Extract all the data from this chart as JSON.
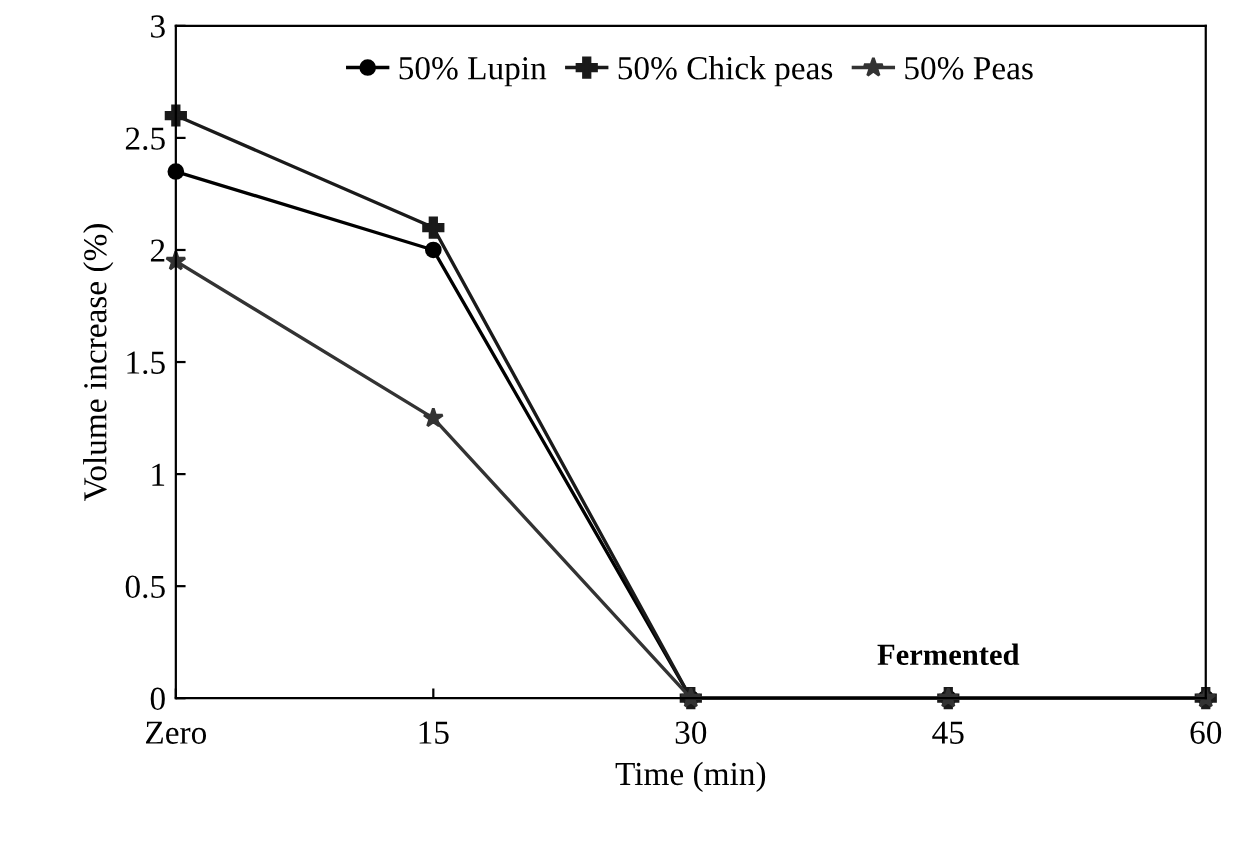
{
  "chart_data": {
    "type": "line",
    "xlabel": "Time (min)",
    "ylabel": "Volume increase (%)",
    "categories": [
      "Zero",
      "15",
      "30",
      "45",
      "60"
    ],
    "series": [
      {
        "name": "50% Lupin",
        "color": "#000000",
        "marker": "circle",
        "values": [
          2.35,
          2.0,
          0,
          0,
          0
        ]
      },
      {
        "name": "50% Chick peas",
        "color": "#1a1a1a",
        "marker": "cross",
        "values": [
          2.6,
          2.1,
          0,
          0,
          0
        ]
      },
      {
        "name": "50% Peas",
        "color": "#333333",
        "marker": "star",
        "values": [
          1.95,
          1.25,
          0,
          0,
          0
        ]
      }
    ],
    "ylim": [
      0,
      3
    ],
    "yticks": [
      0,
      0.5,
      1,
      1.5,
      2,
      2.5,
      3
    ],
    "grid": false,
    "legend": "top",
    "line_style": "solid",
    "annotations": [
      "Fermented"
    ]
  }
}
